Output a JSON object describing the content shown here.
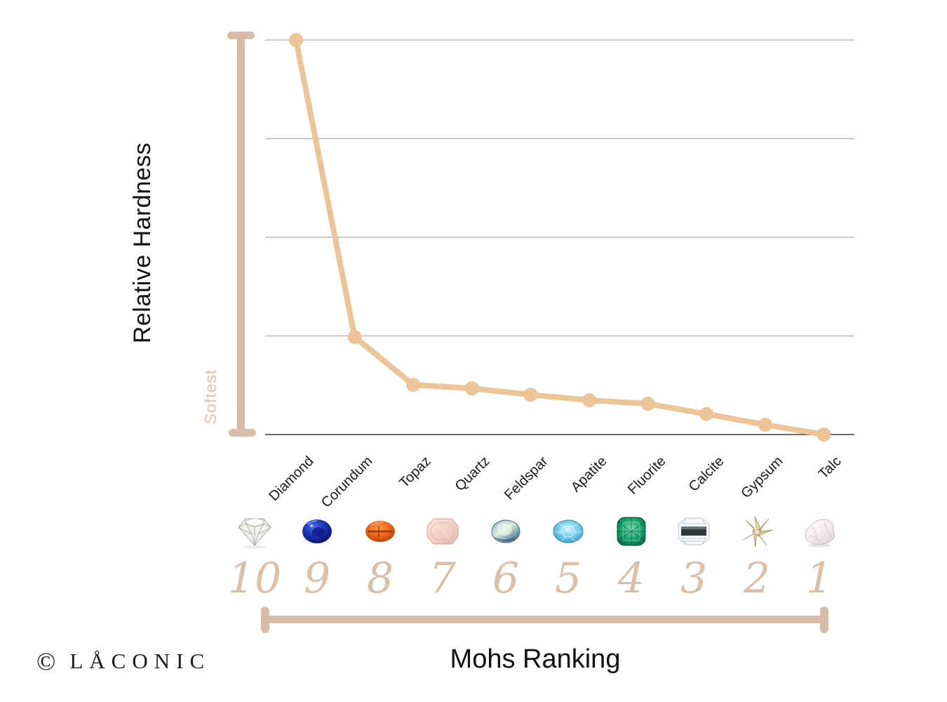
{
  "y_axis": {
    "label": "Relative Hardness",
    "annotation": "Softest"
  },
  "x_axis": {
    "label": "Mohs Ranking"
  },
  "footer": {
    "copyright_symbol": "©",
    "brand": "LÅCONIC"
  },
  "colors": {
    "line": "#ecc496",
    "axis_bar": "#d9bca8",
    "soft_annotation": "#dfc3ae",
    "mohs_number": "#ddbfa6",
    "gridline": "#b8b8b8",
    "baseline": "#6e6e6e",
    "label_text": "#1a1a1a"
  },
  "chart_data": {
    "type": "line",
    "title": "",
    "xlabel": "Mohs Ranking",
    "ylabel": "Relative Hardness",
    "grid": "horizontal gridlines, 4 above baseline",
    "legend": "none",
    "categories": [
      "Diamond",
      "Corundum",
      "Topaz",
      "Quartz",
      "Feldspar",
      "Apatite",
      "Fluorite",
      "Calcite",
      "Gypsum",
      "Talc"
    ],
    "mohs_ranking": [
      10,
      9,
      8,
      7,
      6,
      5,
      4,
      3,
      2,
      1
    ],
    "relative_hardness_normalized": [
      1.0,
      0.247,
      0.126,
      0.117,
      0.101,
      0.087,
      0.078,
      0.052,
      0.025,
      0.0
    ],
    "ylim": [
      0,
      1
    ],
    "minerals": [
      {
        "name": "Diamond",
        "mohs": "10",
        "gem_icon": "diamond-gem-icon"
      },
      {
        "name": "Corundum",
        "mohs": "9",
        "gem_icon": "sapphire-gem-icon"
      },
      {
        "name": "Topaz",
        "mohs": "8",
        "gem_icon": "orange-topaz-gem-icon"
      },
      {
        "name": "Quartz",
        "mohs": "7",
        "gem_icon": "pink-quartz-gem-icon"
      },
      {
        "name": "Feldspar",
        "mohs": "6",
        "gem_icon": "moonstone-gem-icon"
      },
      {
        "name": "Apatite",
        "mohs": "5",
        "gem_icon": "blue-apatite-gem-icon"
      },
      {
        "name": "Fluorite",
        "mohs": "4",
        "gem_icon": "green-fluorite-gem-icon"
      },
      {
        "name": "Calcite",
        "mohs": "3",
        "gem_icon": "clear-calcite-crystal-icon"
      },
      {
        "name": "Gypsum",
        "mohs": "2",
        "gem_icon": "desert-rose-gypsum-icon"
      },
      {
        "name": "Talc",
        "mohs": "1",
        "gem_icon": "white-talc-rock-icon"
      }
    ]
  }
}
